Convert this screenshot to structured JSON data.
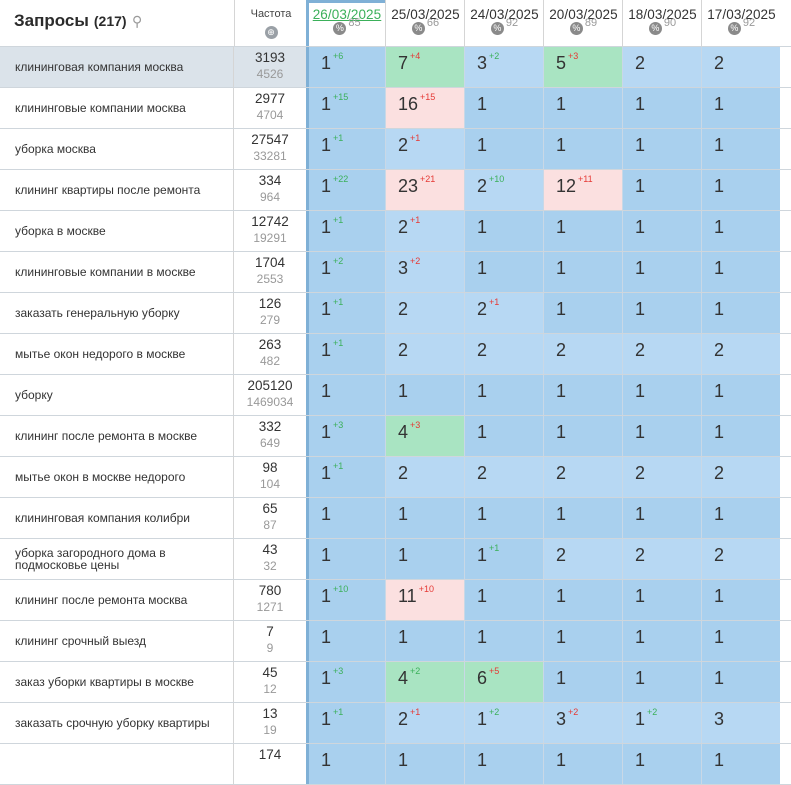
{
  "header": {
    "title": "Запросы",
    "count": "(217)",
    "search_icon": "search-icon",
    "freq_label": "Частота",
    "globe_icon": "globe-icon"
  },
  "dates": [
    {
      "date": "26/03/2025",
      "pct": "85"
    },
    {
      "date": "25/03/2025",
      "pct": "66"
    },
    {
      "date": "24/03/2025",
      "pct": "92"
    },
    {
      "date": "20/03/2025",
      "pct": "89"
    },
    {
      "date": "18/03/2025",
      "pct": "90"
    },
    {
      "date": "17/03/2025",
      "pct": "92"
    }
  ],
  "colors": {
    "blue": "#a9d0ee",
    "light_blue": "#b7d8f3",
    "green": "#a9e4c2",
    "pink": "#fbe0e0",
    "up": "#3bb05a",
    "down": "#e53935"
  },
  "rows": [
    {
      "q": "клининговая компания москва",
      "f1": "3193",
      "f2": "4526",
      "sel": true,
      "cells": [
        [
          "1",
          "+6",
          "up",
          "b"
        ],
        [
          "7",
          "+4",
          "dn",
          "g"
        ],
        [
          "3",
          "+2",
          "up",
          "lb"
        ],
        [
          "5",
          "+3",
          "dn",
          "g"
        ],
        [
          "2",
          "",
          "",
          "lb"
        ],
        [
          "2",
          "",
          "",
          "lb"
        ]
      ]
    },
    {
      "q": "клининговые компании москва",
      "f1": "2977",
      "f2": "4704",
      "cells": [
        [
          "1",
          "+15",
          "up",
          "b"
        ],
        [
          "16",
          "+15",
          "dn",
          "p"
        ],
        [
          "1",
          "",
          "",
          "b"
        ],
        [
          "1",
          "",
          "",
          "b"
        ],
        [
          "1",
          "",
          "",
          "b"
        ],
        [
          "1",
          "",
          "",
          "b"
        ]
      ]
    },
    {
      "q": "уборка москва",
      "f1": "27547",
      "f2": "33281",
      "cells": [
        [
          "1",
          "+1",
          "up",
          "b"
        ],
        [
          "2",
          "+1",
          "dn",
          "lb"
        ],
        [
          "1",
          "",
          "",
          "b"
        ],
        [
          "1",
          "",
          "",
          "b"
        ],
        [
          "1",
          "",
          "",
          "b"
        ],
        [
          "1",
          "",
          "",
          "b"
        ]
      ]
    },
    {
      "q": "клининг квартиры после ремонта",
      "f1": "334",
      "f2": "964",
      "cells": [
        [
          "1",
          "+22",
          "up",
          "b"
        ],
        [
          "23",
          "+21",
          "dn",
          "p"
        ],
        [
          "2",
          "+10",
          "up",
          "lb"
        ],
        [
          "12",
          "+11",
          "dn",
          "p"
        ],
        [
          "1",
          "",
          "",
          "b"
        ],
        [
          "1",
          "",
          "",
          "b"
        ]
      ]
    },
    {
      "q": "уборка в москве",
      "f1": "12742",
      "f2": "19291",
      "cells": [
        [
          "1",
          "+1",
          "up",
          "b"
        ],
        [
          "2",
          "+1",
          "dn",
          "lb"
        ],
        [
          "1",
          "",
          "",
          "b"
        ],
        [
          "1",
          "",
          "",
          "b"
        ],
        [
          "1",
          "",
          "",
          "b"
        ],
        [
          "1",
          "",
          "",
          "b"
        ]
      ]
    },
    {
      "q": "клининговые компании в москве",
      "f1": "1704",
      "f2": "2553",
      "cells": [
        [
          "1",
          "+2",
          "up",
          "b"
        ],
        [
          "3",
          "+2",
          "dn",
          "lb"
        ],
        [
          "1",
          "",
          "",
          "b"
        ],
        [
          "1",
          "",
          "",
          "b"
        ],
        [
          "1",
          "",
          "",
          "b"
        ],
        [
          "1",
          "",
          "",
          "b"
        ]
      ]
    },
    {
      "q": "заказать генеральную уборку",
      "f1": "126",
      "f2": "279",
      "cells": [
        [
          "1",
          "+1",
          "up",
          "b"
        ],
        [
          "2",
          "",
          "",
          "lb"
        ],
        [
          "2",
          "+1",
          "dn",
          "lb"
        ],
        [
          "1",
          "",
          "",
          "b"
        ],
        [
          "1",
          "",
          "",
          "b"
        ],
        [
          "1",
          "",
          "",
          "b"
        ]
      ]
    },
    {
      "q": "мытье окон недорого в москве",
      "f1": "263",
      "f2": "482",
      "cells": [
        [
          "1",
          "+1",
          "up",
          "b"
        ],
        [
          "2",
          "",
          "",
          "lb"
        ],
        [
          "2",
          "",
          "",
          "lb"
        ],
        [
          "2",
          "",
          "",
          "lb"
        ],
        [
          "2",
          "",
          "",
          "lb"
        ],
        [
          "2",
          "",
          "",
          "lb"
        ]
      ]
    },
    {
      "q": "уборку",
      "f1": "205120",
      "f2": "1469034",
      "cells": [
        [
          "1",
          "",
          "",
          "b"
        ],
        [
          "1",
          "",
          "",
          "b"
        ],
        [
          "1",
          "",
          "",
          "b"
        ],
        [
          "1",
          "",
          "",
          "b"
        ],
        [
          "1",
          "",
          "",
          "b"
        ],
        [
          "1",
          "",
          "",
          "b"
        ]
      ]
    },
    {
      "q": "клининг после ремонта в москве",
      "f1": "332",
      "f2": "649",
      "cells": [
        [
          "1",
          "+3",
          "up",
          "b"
        ],
        [
          "4",
          "+3",
          "dn",
          "g"
        ],
        [
          "1",
          "",
          "",
          "b"
        ],
        [
          "1",
          "",
          "",
          "b"
        ],
        [
          "1",
          "",
          "",
          "b"
        ],
        [
          "1",
          "",
          "",
          "b"
        ]
      ]
    },
    {
      "q": "мытье окон в москве недорого",
      "f1": "98",
      "f2": "104",
      "cells": [
        [
          "1",
          "+1",
          "up",
          "b"
        ],
        [
          "2",
          "",
          "",
          "lb"
        ],
        [
          "2",
          "",
          "",
          "lb"
        ],
        [
          "2",
          "",
          "",
          "lb"
        ],
        [
          "2",
          "",
          "",
          "lb"
        ],
        [
          "2",
          "",
          "",
          "lb"
        ]
      ]
    },
    {
      "q": "клининговая компания колибри",
      "f1": "65",
      "f2": "87",
      "cells": [
        [
          "1",
          "",
          "",
          "b"
        ],
        [
          "1",
          "",
          "",
          "b"
        ],
        [
          "1",
          "",
          "",
          "b"
        ],
        [
          "1",
          "",
          "",
          "b"
        ],
        [
          "1",
          "",
          "",
          "b"
        ],
        [
          "1",
          "",
          "",
          "b"
        ]
      ]
    },
    {
      "q": "уборка загородного дома в подмосковье цены",
      "f1": "43",
      "f2": "32",
      "cells": [
        [
          "1",
          "",
          "",
          "b"
        ],
        [
          "1",
          "",
          "",
          "b"
        ],
        [
          "1",
          "+1",
          "up",
          "b"
        ],
        [
          "2",
          "",
          "",
          "lb"
        ],
        [
          "2",
          "",
          "",
          "lb"
        ],
        [
          "2",
          "",
          "",
          "lb"
        ]
      ]
    },
    {
      "q": "клининг после ремонта москва",
      "f1": "780",
      "f2": "1271",
      "cells": [
        [
          "1",
          "+10",
          "up",
          "b"
        ],
        [
          "11",
          "+10",
          "dn",
          "p"
        ],
        [
          "1",
          "",
          "",
          "b"
        ],
        [
          "1",
          "",
          "",
          "b"
        ],
        [
          "1",
          "",
          "",
          "b"
        ],
        [
          "1",
          "",
          "",
          "b"
        ]
      ]
    },
    {
      "q": "клининг срочный выезд",
      "f1": "7",
      "f2": "9",
      "cells": [
        [
          "1",
          "",
          "",
          "b"
        ],
        [
          "1",
          "",
          "",
          "b"
        ],
        [
          "1",
          "",
          "",
          "b"
        ],
        [
          "1",
          "",
          "",
          "b"
        ],
        [
          "1",
          "",
          "",
          "b"
        ],
        [
          "1",
          "",
          "",
          "b"
        ]
      ]
    },
    {
      "q": "заказ уборки квартиры в москве",
      "f1": "45",
      "f2": "12",
      "cells": [
        [
          "1",
          "+3",
          "up",
          "b"
        ],
        [
          "4",
          "+2",
          "up",
          "g"
        ],
        [
          "6",
          "+5",
          "dn",
          "g"
        ],
        [
          "1",
          "",
          "",
          "b"
        ],
        [
          "1",
          "",
          "",
          "b"
        ],
        [
          "1",
          "",
          "",
          "b"
        ]
      ]
    },
    {
      "q": "заказать срочную уборку квартиры",
      "f1": "13",
      "f2": "19",
      "cells": [
        [
          "1",
          "+1",
          "up",
          "b"
        ],
        [
          "2",
          "+1",
          "dn",
          "lb"
        ],
        [
          "1",
          "+2",
          "up",
          "lb"
        ],
        [
          "3",
          "+2",
          "dn",
          "lb"
        ],
        [
          "1",
          "+2",
          "up",
          "lb"
        ],
        [
          "3",
          "",
          "",
          "lb"
        ]
      ]
    },
    {
      "q": "",
      "f1": "174",
      "f2": "",
      "cells": [
        [
          "1",
          "",
          "",
          "b"
        ],
        [
          "1",
          "",
          "",
          "b"
        ],
        [
          "1",
          "",
          "",
          "b"
        ],
        [
          "1",
          "",
          "",
          "b"
        ],
        [
          "1",
          "",
          "",
          "b"
        ],
        [
          "1",
          "",
          "",
          "b"
        ]
      ]
    }
  ]
}
